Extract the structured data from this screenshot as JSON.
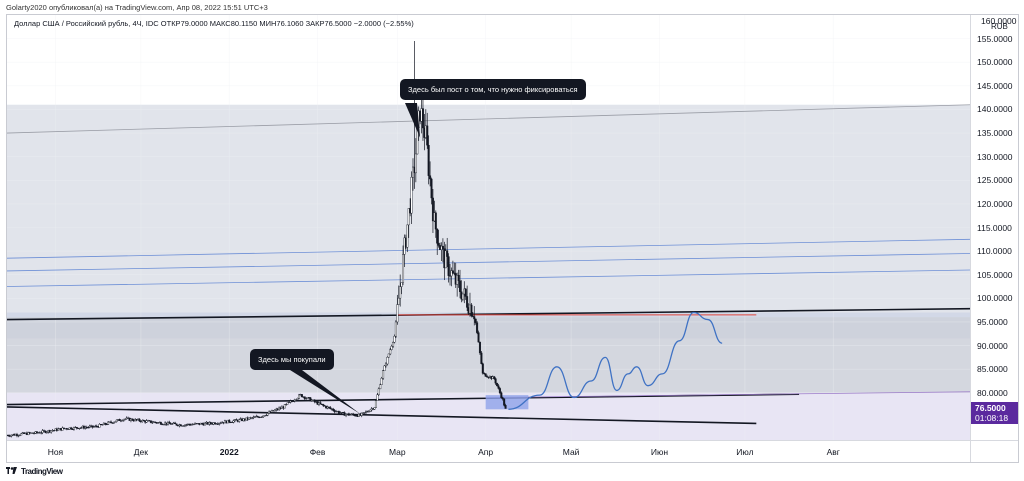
{
  "header": {
    "publish_line": "Golarty2020 опубликовал(а) на TradingView.com, Апр 08, 2022 15:51 UTC+3"
  },
  "symbol_line": "Доллар США / Российский рубль, 4Ч, IDC  ОТКР79.0000  МАКС80.1150  МИН76.1060  ЗАКР76.5000  −2.0000 (−2.55%)",
  "annotations": {
    "sell_note": "Здесь был пост о том, что нужно фиксироваться",
    "buy_note": "Здесь мы покупали"
  },
  "price_axis": {
    "currency": "RUB",
    "top_label": "160.0000",
    "last_price": "76.5000",
    "countdown": "01:08:18",
    "last_price_color": "#5b2a9e"
  },
  "footer": {
    "logo_text": "TradingView",
    "logo_icon": "tradingview-logo-icon"
  },
  "colors": {
    "candles": "#131722",
    "forecast": "#3f72c4",
    "resistance_line": "#e0453b",
    "channel_line": "#131722",
    "grid": "#eef0f3"
  },
  "chart_data": {
    "type": "candlestick",
    "title": "",
    "ylabel": "RUB",
    "ylim": [
      70,
      160
    ],
    "y_ticks": [
      155,
      150,
      145,
      140,
      135,
      130,
      125,
      120,
      115,
      110,
      105,
      100,
      95,
      90,
      85,
      80
    ],
    "y_tick_labels": [
      "155.0000",
      "150.0000",
      "145.0000",
      "140.0000",
      "135.0000",
      "130.0000",
      "125.0000",
      "120.0000",
      "115.0000",
      "110.0000",
      "105.0000",
      "100.0000",
      "95.0000",
      "90.0000",
      "85.0000",
      "80.0000"
    ],
    "x_ticks": [
      {
        "date": "2021-11-01",
        "label": "Ноя",
        "bold": false
      },
      {
        "date": "2021-12-01",
        "label": "Дек",
        "bold": false
      },
      {
        "date": "2022-01-01",
        "label": "2022",
        "bold": true
      },
      {
        "date": "2022-02-01",
        "label": "Фев",
        "bold": false
      },
      {
        "date": "2022-03-01",
        "label": "Мар",
        "bold": false
      },
      {
        "date": "2022-04-01",
        "label": "Апр",
        "bold": false
      },
      {
        "date": "2022-05-01",
        "label": "Май",
        "bold": false
      },
      {
        "date": "2022-06-01",
        "label": "Июн",
        "bold": false
      },
      {
        "date": "2022-07-01",
        "label": "Июл",
        "bold": false
      },
      {
        "date": "2022-08-01",
        "label": "Авг",
        "bold": false
      }
    ],
    "xlim": [
      "2021-10-15",
      "2022-09-18"
    ],
    "last_close": 76.5,
    "ohlc_last": {
      "open": 79.0,
      "high": 80.115,
      "low": 76.106,
      "close": 76.5,
      "change": -2.0,
      "change_pct": -2.55
    },
    "price_path": [
      [
        "2021-10-15",
        71.0
      ],
      [
        "2021-10-25",
        71.5
      ],
      [
        "2021-11-05",
        72.5
      ],
      [
        "2021-11-15",
        72.8
      ],
      [
        "2021-11-25",
        74.5
      ],
      [
        "2021-12-05",
        73.8
      ],
      [
        "2021-12-15",
        73.2
      ],
      [
        "2021-12-25",
        73.5
      ],
      [
        "2022-01-05",
        74.2
      ],
      [
        "2022-01-12",
        75.0
      ],
      [
        "2022-01-20",
        77.0
      ],
      [
        "2022-01-26",
        79.5
      ],
      [
        "2022-02-02",
        77.5
      ],
      [
        "2022-02-10",
        75.5
      ],
      [
        "2022-02-16",
        75.2
      ],
      [
        "2022-02-21",
        77.0
      ],
      [
        "2022-02-24",
        84.5
      ],
      [
        "2022-02-28",
        92.0
      ],
      [
        "2022-03-03",
        108.0
      ],
      [
        "2022-03-07",
        128.0
      ],
      [
        "2022-03-09",
        140.0
      ],
      [
        "2022-03-11",
        134.0
      ],
      [
        "2022-03-14",
        116.0
      ],
      [
        "2022-03-17",
        109.0
      ],
      [
        "2022-03-21",
        104.0
      ],
      [
        "2022-03-24",
        101.0
      ],
      [
        "2022-03-28",
        97.0
      ],
      [
        "2022-03-31",
        84.0
      ],
      [
        "2022-04-04",
        83.0
      ],
      [
        "2022-04-07",
        78.5
      ],
      [
        "2022-04-08",
        76.5
      ]
    ],
    "spike_high": [
      "2022-03-07",
      154.5
    ],
    "forecast_path": [
      [
        "2022-04-09",
        76.5
      ],
      [
        "2022-04-20",
        79.5
      ],
      [
        "2022-04-26",
        85.5
      ],
      [
        "2022-05-02",
        79.0
      ],
      [
        "2022-05-08",
        82.5
      ],
      [
        "2022-05-13",
        87.5
      ],
      [
        "2022-05-17",
        80.5
      ],
      [
        "2022-05-21",
        84.0
      ],
      [
        "2022-05-24",
        85.5
      ],
      [
        "2022-05-28",
        81.5
      ],
      [
        "2022-06-02",
        84.0
      ],
      [
        "2022-06-08",
        91.0
      ],
      [
        "2022-06-13",
        97.0
      ],
      [
        "2022-06-18",
        95.5
      ],
      [
        "2022-06-23",
        90.5
      ]
    ],
    "resistance": {
      "from": "2022-03-01",
      "to": "2022-07-05",
      "value": 96.5
    },
    "bands": [
      {
        "from_value": 96.0,
        "to_value": 141.0,
        "color": "#dcdfe8"
      },
      {
        "from_value": 91.5,
        "to_value": 97.0,
        "color": "#cfd6e6"
      },
      {
        "from_value": 80.0,
        "to_value": 96.0,
        "color": "#cdd0d9"
      },
      {
        "from_value": 70.0,
        "to_value": 80.0,
        "color": "#e4e1f2"
      }
    ],
    "trend_lines": [
      {
        "name": "channel-top",
        "from": [
          "2021-10-15",
          95.5
        ],
        "to": [
          "2022-09-18",
          97.8
        ],
        "color": "#131722"
      },
      {
        "name": "channel-upper",
        "from": [
          "2021-10-15",
          135.0
        ],
        "to": [
          "2022-09-18",
          141.0
        ],
        "color": "#9a9da6"
      },
      {
        "name": "blue-upper-1",
        "from": [
          "2021-10-15",
          108.5
        ],
        "to": [
          "2022-09-18",
          112.5
        ],
        "color": "#6d8fd6"
      },
      {
        "name": "blue-upper-2",
        "from": [
          "2021-10-15",
          105.8
        ],
        "to": [
          "2022-09-18",
          109.5
        ],
        "color": "#6d8fd6"
      },
      {
        "name": "blue-upper-3",
        "from": [
          "2021-10-15",
          102.5
        ],
        "to": [
          "2022-09-18",
          106.0
        ],
        "color": "#6d8fd6"
      },
      {
        "name": "support-top",
        "from": [
          "2021-10-15",
          77.5
        ],
        "to": [
          "2022-07-20",
          79.7
        ],
        "color": "#131722"
      },
      {
        "name": "support-bottom",
        "from": [
          "2021-10-15",
          77.0
        ],
        "to": [
          "2022-07-05",
          73.5
        ],
        "color": "#131722"
      },
      {
        "name": "purple-line",
        "from": [
          "2022-04-01",
          79.0
        ],
        "to": [
          "2022-09-18",
          80.2
        ],
        "color": "#9c7cc9"
      }
    ],
    "highlight_box": {
      "from": "2022-04-01",
      "to": "2022-04-16",
      "low": 76.5,
      "high": 79.5,
      "color": "#8fa3ea"
    },
    "grid": true,
    "legend": "none"
  }
}
